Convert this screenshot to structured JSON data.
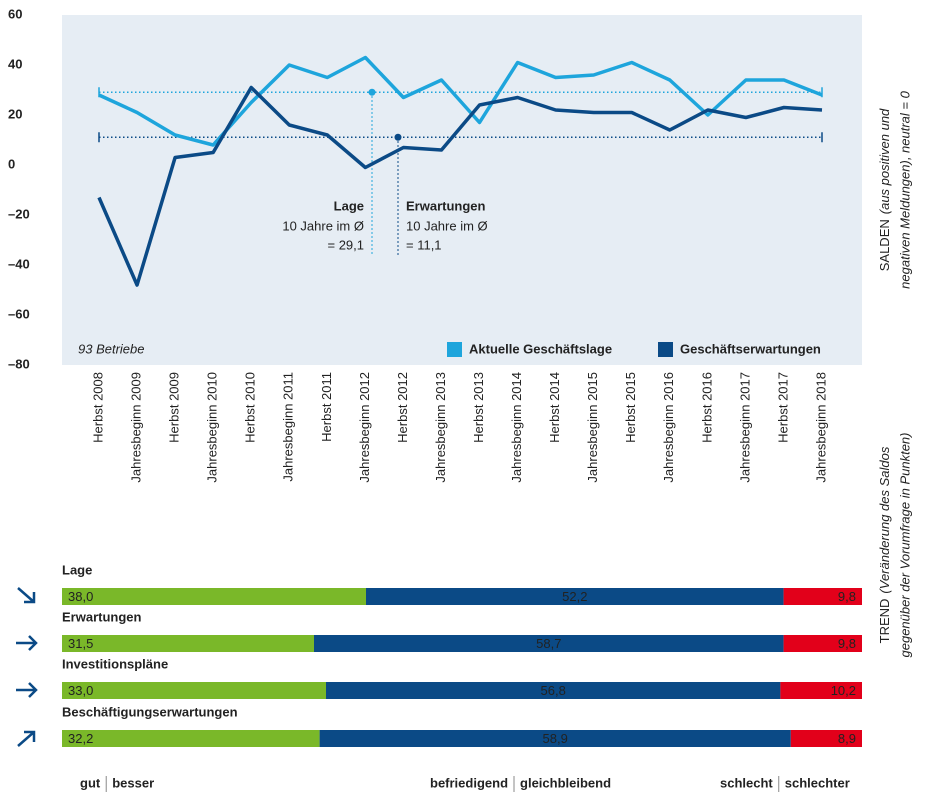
{
  "chart_data": [
    {
      "type": "line",
      "categories": [
        "Herbst 2008",
        "Jahresbeginn 2009",
        "Herbst 2009",
        "Jahresbeginn 2010",
        "Herbst 2010",
        "Jahresbeginn 2011",
        "Herbst 2011",
        "Jahresbeginn 2012",
        "Herbst 2012",
        "Jahresbeginn 2013",
        "Herbst 2013",
        "Jahresbeginn 2014",
        "Herbst 2014",
        "Jahresbeginn 2015",
        "Herbst 2015",
        "Jahresbeginn 2016",
        "Herbst 2016",
        "Jahresbeginn 2017",
        "Herbst 2017",
        "Jahresbeginn 2018"
      ],
      "series": [
        {
          "name": "Aktuelle Geschäftslage",
          "color": "#1ea5dc",
          "values": [
            28,
            21,
            12,
            8,
            25,
            40,
            35,
            43,
            27,
            34,
            17,
            41,
            35,
            36,
            41,
            34,
            20,
            34,
            34,
            28
          ]
        },
        {
          "name": "Geschäftserwartungen",
          "color": "#0b4a86",
          "values": [
            -13,
            -48,
            3,
            5,
            31,
            16,
            12,
            -1,
            7,
            6,
            24,
            27,
            22,
            21,
            21,
            14,
            22,
            19,
            23,
            22
          ]
        }
      ],
      "ylim": [
        -80,
        60
      ],
      "yticks": [
        60,
        40,
        20,
        0,
        {
          "value": -20,
          "label": "–20"
        },
        {
          "value": -40,
          "label": "–40"
        },
        {
          "value": -60,
          "label": "–60"
        },
        {
          "value": -80,
          "label": "–80"
        }
      ],
      "background": "#e6edf4",
      "note": "93 Betriebe",
      "y_label": "SALDEN",
      "y_label_note": [
        "(aus positiven und",
        "negativen Meldungen), neutral = 0"
      ],
      "averages": [
        {
          "title": "Lage",
          "text": "10 Jahre im Ø",
          "value": 29.1,
          "label": "= 29,1",
          "color": "#1ea5dc"
        },
        {
          "title": "Erwartungen",
          "text": "10 Jahre im Ø",
          "value": 11.1,
          "label": "= 11,1",
          "color": "#0b4a86"
        }
      ]
    },
    {
      "type": "stacked_bar",
      "categories": [
        "Lage",
        "Erwartungen",
        "Investitionspläne",
        "Beschäftigungserwartungen"
      ],
      "series": [
        {
          "name": "gut",
          "trend_name": "besser",
          "color": "#7ab829",
          "values": [
            38.0,
            31.5,
            33.0,
            32.2
          ],
          "value_labels": [
            "38,0",
            "31,5",
            "33,0",
            "32,2"
          ]
        },
        {
          "name": "befriedigend",
          "trend_name": "gleichbleibend",
          "color": "#0b4a86",
          "values": [
            52.2,
            58.7,
            56.8,
            58.9
          ],
          "value_labels": [
            "52,2",
            "58,7",
            "56,8",
            "58,9"
          ]
        },
        {
          "name": "schlecht",
          "trend_name": "schlechter",
          "color": "#e2001a",
          "values": [
            9.8,
            9.8,
            10.2,
            8.9
          ],
          "value_labels": [
            "9,8",
            "9,8",
            "10,2",
            "8,9"
          ]
        }
      ],
      "xlim": [
        0,
        100
      ],
      "y_label": "TREND",
      "y_label_note": [
        "(Veränderung des Saldos",
        "gegenüber der Vorumfrage in Punkten)"
      ]
    }
  ]
}
